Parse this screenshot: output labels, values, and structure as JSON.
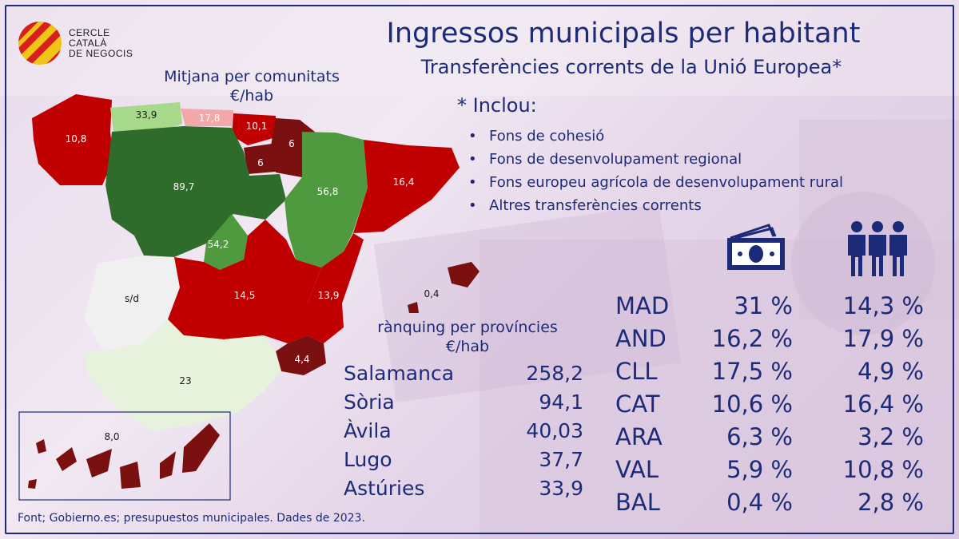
{
  "logo": {
    "lines": [
      "CERCLE",
      "CATALÀ",
      "DE NEGOCIS"
    ]
  },
  "title": "Ingressos municipals per habitant",
  "subtitle": "Transferències corrents de la Unió Europea*",
  "map": {
    "caption_line1": "Mitjana per comunitats",
    "caption_line2": "€/hab",
    "labels": {
      "galicia": "10,8",
      "asturias": "33,9",
      "cantabria": "17,8",
      "pais_vasco": "10,1",
      "navarra": "6",
      "rioja": "6",
      "castilla_leon": "89,7",
      "aragon": "56,8",
      "cataluna": "16,4",
      "madrid": "54,2",
      "extremadura": "s/d",
      "castilla_la_mancha": "14,5",
      "valencia": "13,9",
      "baleares": "0,4",
      "murcia": "4,4",
      "andalucia": "23",
      "canarias": "8,0"
    },
    "colors": {
      "dark_green": "#2f6b2a",
      "mid_green": "#4f9a3f",
      "light_green": "#a6d98a",
      "pale_green": "#e6f2dc",
      "red": "#c00000",
      "dark_red": "#7a1010",
      "pink": "#f2a8a8",
      "grey": "#f0f0f0"
    }
  },
  "inclou": {
    "title": "* Inclou:",
    "items": [
      "Fons de cohesió",
      "Fons de desenvolupament regional",
      "Fons europeu agrícola de desenvolupament rural",
      "Altres transferències corrents"
    ]
  },
  "ranking": {
    "caption_line1": "rànquing per províncies",
    "caption_line2": "€/hab",
    "rows": [
      {
        "name": "Salamanca",
        "value": "258,2"
      },
      {
        "name": "Sòria",
        "value": "94,1"
      },
      {
        "name": "Àvila",
        "value": "40,03"
      },
      {
        "name": "Lugo",
        "value": "37,7"
      },
      {
        "name": "Astúries",
        "value": "33,9"
      }
    ]
  },
  "stats": {
    "icons": [
      "money-icon",
      "people-icon"
    ],
    "rows": [
      {
        "code": "MAD",
        "money": "31 %",
        "people": "14,3 %"
      },
      {
        "code": "AND",
        "money": "16,2 %",
        "people": "17,9 %"
      },
      {
        "code": "CLL",
        "money": "17,5 %",
        "people": "4,9 %"
      },
      {
        "code": "CAT",
        "money": "10,6 %",
        "people": "16,4 %"
      },
      {
        "code": "ARA",
        "money": "6,3 %",
        "people": "3,2 %"
      },
      {
        "code": "VAL",
        "money": "5,9 %",
        "people": "10,8 %"
      },
      {
        "code": "BAL",
        "money": "0,4 %",
        "people": "2,8 %"
      }
    ]
  },
  "footer": "Font; Gobierno.es; presupuestos municipales. Dades de 2023.",
  "theme": {
    "text_color": "#1c2b77"
  }
}
